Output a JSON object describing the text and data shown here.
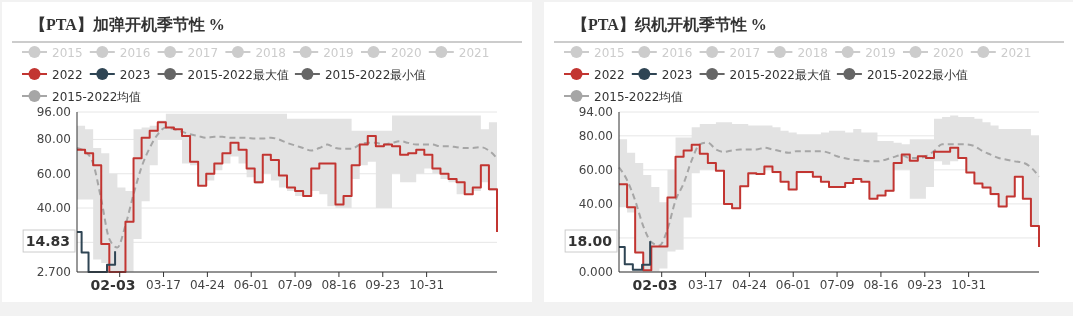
{
  "chart_data": [
    {
      "type": "step",
      "title": "【PTA】加弹开机季节性 %",
      "x": [
        "--01-01",
        "--01-08",
        "--01-15",
        "--01-22",
        "--01-29",
        "--02-05",
        "--02-12",
        "--02-19",
        "--02-26",
        "--03-05",
        "--03-12",
        "--03-19",
        "--03-26",
        "--04-02",
        "--04-09",
        "--04-16",
        "--04-23",
        "--04-30",
        "--05-07",
        "--05-14",
        "--05-21",
        "--05-28",
        "--06-04",
        "--06-11",
        "--06-18",
        "--06-25",
        "--07-02",
        "--07-09",
        "--07-16",
        "--07-23",
        "--07-30",
        "--08-06",
        "--08-13",
        "--08-20",
        "--08-27",
        "--09-03",
        "--09-10",
        "--09-17",
        "--09-24",
        "--10-01",
        "--10-08",
        "--10-15",
        "--10-22",
        "--10-29",
        "--11-05",
        "--11-12",
        "--11-19",
        "--11-26",
        "--12-03",
        "--12-10",
        "--12-17",
        "--12-24",
        "--12-31"
      ],
      "xlim": [
        "--01-01",
        "--12-31"
      ],
      "xticks": [
        {
          "value": "--02-07",
          "label": null
        },
        {
          "value": "--03-17",
          "label": "03-17"
        },
        {
          "value": "--04-24",
          "label": "04-24"
        },
        {
          "value": "--06-01",
          "label": "06-01"
        },
        {
          "value": "--07-09",
          "label": "07-09"
        },
        {
          "value": "--08-16",
          "label": "08-16"
        },
        {
          "value": "--09-23",
          "label": "09-23"
        },
        {
          "value": "--10-31",
          "label": "10-31"
        }
      ],
      "ylim": [
        2.7,
        96
      ],
      "yticks": [
        {
          "value": 2.7,
          "label": "2.700"
        },
        {
          "value": 20,
          "label": null
        },
        {
          "value": 40,
          "label": "40.00"
        },
        {
          "value": 60,
          "label": "60.00"
        },
        {
          "value": 80,
          "label": "80.00"
        },
        {
          "value": 96,
          "label": "96.00"
        }
      ],
      "grid": "y",
      "legend": "top",
      "annotations": [
        "02-03",
        "14.83"
      ],
      "series": [
        {
          "name": "2015",
          "color": "#cccccc",
          "values": [
            null,
            null,
            null,
            null,
            null,
            null,
            null,
            null,
            null,
            null,
            null,
            null,
            null,
            null,
            null,
            null,
            null,
            null,
            null,
            null,
            null,
            null,
            null,
            null,
            null,
            null,
            null,
            null,
            null,
            null,
            null,
            null,
            null,
            null,
            null,
            null,
            null,
            null,
            null,
            null,
            null,
            null,
            null,
            null,
            null,
            null,
            null,
            null,
            null,
            null,
            null,
            null,
            null
          ]
        },
        {
          "name": "2016",
          "color": "#cccccc",
          "values": [
            null,
            null,
            null,
            null,
            null,
            null,
            null,
            null,
            null,
            null,
            null,
            null,
            null,
            null,
            null,
            null,
            null,
            null,
            null,
            null,
            null,
            null,
            null,
            null,
            null,
            null,
            null,
            null,
            null,
            null,
            null,
            null,
            null,
            null,
            null,
            null,
            null,
            null,
            null,
            null,
            null,
            null,
            null,
            null,
            null,
            null,
            null,
            null,
            null,
            null,
            null,
            null,
            null
          ]
        },
        {
          "name": "2017",
          "color": "#cccccc",
          "values": [
            null,
            null,
            null,
            null,
            null,
            null,
            null,
            null,
            null,
            null,
            null,
            null,
            null,
            null,
            null,
            null,
            null,
            null,
            null,
            null,
            null,
            null,
            null,
            null,
            null,
            null,
            null,
            null,
            null,
            null,
            null,
            null,
            null,
            null,
            null,
            null,
            null,
            null,
            null,
            null,
            null,
            null,
            null,
            null,
            null,
            null,
            null,
            null,
            null,
            null,
            null,
            null,
            null
          ]
        },
        {
          "name": "2018",
          "color": "#cccccc",
          "values": [
            null,
            null,
            null,
            null,
            null,
            null,
            null,
            null,
            null,
            null,
            null,
            null,
            null,
            null,
            null,
            null,
            null,
            null,
            null,
            null,
            null,
            null,
            null,
            null,
            null,
            null,
            null,
            null,
            null,
            null,
            null,
            null,
            null,
            null,
            null,
            null,
            null,
            null,
            null,
            null,
            null,
            null,
            null,
            null,
            null,
            null,
            null,
            null,
            null,
            null,
            null,
            null,
            null
          ]
        },
        {
          "name": "2019",
          "color": "#cccccc",
          "values": [
            null,
            null,
            null,
            null,
            null,
            null,
            null,
            null,
            null,
            null,
            null,
            null,
            null,
            null,
            null,
            null,
            null,
            null,
            null,
            null,
            null,
            null,
            null,
            null,
            null,
            null,
            null,
            null,
            null,
            null,
            null,
            null,
            null,
            null,
            null,
            null,
            null,
            null,
            null,
            null,
            null,
            null,
            null,
            null,
            null,
            null,
            null,
            null,
            null,
            null,
            null,
            null,
            null
          ]
        },
        {
          "name": "2020",
          "color": "#cccccc",
          "values": [
            null,
            null,
            null,
            null,
            null,
            null,
            null,
            null,
            null,
            null,
            null,
            null,
            null,
            null,
            null,
            null,
            null,
            null,
            null,
            null,
            null,
            null,
            null,
            null,
            null,
            null,
            null,
            null,
            null,
            null,
            null,
            null,
            null,
            null,
            null,
            null,
            null,
            null,
            null,
            null,
            null,
            null,
            null,
            null,
            null,
            null,
            null,
            null,
            null,
            null,
            null,
            null,
            null
          ]
        },
        {
          "name": "2021",
          "color": "#cccccc",
          "values": [
            null,
            null,
            null,
            null,
            null,
            null,
            null,
            null,
            null,
            null,
            null,
            null,
            null,
            null,
            null,
            null,
            null,
            null,
            null,
            null,
            null,
            null,
            null,
            null,
            null,
            null,
            null,
            null,
            null,
            null,
            null,
            null,
            null,
            null,
            null,
            null,
            null,
            null,
            null,
            null,
            null,
            null,
            null,
            null,
            null,
            null,
            null,
            null,
            null,
            null,
            null,
            null,
            null
          ]
        },
        {
          "name": "2022",
          "color": "#c23531",
          "values": [
            74,
            72,
            65,
            19,
            2.7,
            2.7,
            32,
            69,
            81,
            85,
            90,
            87,
            86,
            82,
            67,
            53,
            60,
            66,
            72,
            78,
            74,
            63,
            55,
            71,
            68,
            59,
            52,
            50,
            47,
            63,
            66,
            66,
            42,
            47,
            65,
            77,
            82,
            76,
            77,
            76,
            71,
            72,
            74,
            71,
            63,
            60,
            57,
            55,
            48,
            52,
            65,
            51,
            26
          ]
        },
        {
          "name": "2023",
          "color": "#2f4554",
          "x": [
            "--01-01",
            "--01-05",
            "--01-11",
            "--01-27",
            "--02-03"
          ],
          "values": [
            26,
            14,
            2.7,
            7,
            14.83
          ]
        },
        {
          "name": "2015-2022最大值",
          "color": "#666666",
          "values": [
            null,
            null,
            null,
            null,
            null,
            null,
            null,
            null,
            null,
            null,
            null,
            null,
            null,
            null,
            null,
            null,
            null,
            null,
            null,
            null,
            null,
            null,
            null,
            null,
            null,
            null,
            null,
            null,
            null,
            null,
            null,
            null,
            null,
            null,
            null,
            null,
            null,
            null,
            null,
            null,
            null,
            null,
            null,
            null,
            null,
            null,
            null,
            null,
            null,
            null,
            null,
            null,
            null
          ]
        },
        {
          "name": "2015-2022最小值",
          "color": "#666666",
          "values": [
            null,
            null,
            null,
            null,
            null,
            null,
            null,
            null,
            null,
            null,
            null,
            null,
            null,
            null,
            null,
            null,
            null,
            null,
            null,
            null,
            null,
            null,
            null,
            null,
            null,
            null,
            null,
            null,
            null,
            null,
            null,
            null,
            null,
            null,
            null,
            null,
            null,
            null,
            null,
            null,
            null,
            null,
            null,
            null,
            null,
            null,
            null,
            null,
            null,
            null,
            null,
            null,
            null
          ]
        },
        {
          "name": "2015-2022均值",
          "type": "line",
          "line_style": "dashed",
          "color": "#a6a6a6",
          "values": [
            75,
            73,
            66,
            45,
            22,
            17,
            30,
            48,
            64,
            75,
            83,
            87,
            86,
            84.5,
            83,
            82,
            81,
            81.5,
            81.5,
            81,
            81,
            81,
            80.5,
            80.5,
            81,
            80,
            78,
            76.5,
            75,
            73.5,
            75,
            77,
            75,
            74.5,
            74.5,
            77,
            78,
            78,
            77,
            78,
            79,
            78,
            77,
            77,
            77,
            76,
            76,
            75.5,
            75,
            75,
            75.5,
            73.5,
            69
          ],
          "upper": [
            88,
            86,
            75,
            72,
            60,
            52,
            50,
            86,
            87,
            88,
            91,
            95,
            95,
            95,
            95,
            95,
            95,
            95,
            95,
            95,
            95,
            95,
            95,
            95,
            95,
            95,
            92,
            92,
            92,
            92,
            92,
            92,
            92,
            92,
            85,
            85,
            85,
            85,
            85,
            94,
            94,
            94,
            94,
            94,
            94,
            94,
            94,
            94,
            94,
            94,
            86,
            90,
            90
          ],
          "lower": [
            45,
            45,
            10,
            8,
            2.7,
            2.7,
            2.7,
            22,
            44,
            65,
            80,
            80,
            80,
            66,
            65,
            53,
            56,
            62,
            66,
            70,
            66,
            58,
            54,
            60,
            56,
            52,
            50,
            47,
            47,
            50,
            48,
            41,
            40,
            40,
            57,
            65,
            67,
            40,
            40,
            60,
            55,
            55,
            60,
            63,
            60,
            57,
            55,
            48,
            48,
            50,
            55,
            50,
            26
          ]
        }
      ]
    },
    {
      "type": "step",
      "title": "【PTA】织机开机季节性 %",
      "x": [
        "--01-01",
        "--01-08",
        "--01-15",
        "--01-22",
        "--01-29",
        "--02-05",
        "--02-12",
        "--02-19",
        "--02-26",
        "--03-05",
        "--03-12",
        "--03-19",
        "--03-26",
        "--04-02",
        "--04-09",
        "--04-16",
        "--04-23",
        "--04-30",
        "--05-07",
        "--05-14",
        "--05-21",
        "--05-28",
        "--06-04",
        "--06-11",
        "--06-18",
        "--06-25",
        "--07-02",
        "--07-09",
        "--07-16",
        "--07-23",
        "--07-30",
        "--08-06",
        "--08-13",
        "--08-20",
        "--08-27",
        "--09-03",
        "--09-10",
        "--09-17",
        "--09-24",
        "--10-01",
        "--10-08",
        "--10-15",
        "--10-22",
        "--10-29",
        "--11-05",
        "--11-12",
        "--11-19",
        "--11-26",
        "--12-03",
        "--12-10",
        "--12-17",
        "--12-24",
        "--12-31"
      ],
      "xlim": [
        "--01-01",
        "--12-31"
      ],
      "xticks": [
        {
          "value": "--02-07",
          "label": null
        },
        {
          "value": "--03-17",
          "label": "03-17"
        },
        {
          "value": "--04-24",
          "label": "04-24"
        },
        {
          "value": "--06-01",
          "label": "06-01"
        },
        {
          "value": "--07-09",
          "label": "07-09"
        },
        {
          "value": "--08-16",
          "label": "08-16"
        },
        {
          "value": "--09-23",
          "label": "09-23"
        },
        {
          "value": "--10-31",
          "label": "10-31"
        }
      ],
      "ylim": [
        0,
        94
      ],
      "yticks": [
        {
          "value": 0,
          "label": "0.000"
        },
        {
          "value": 20,
          "label": null
        },
        {
          "value": 40,
          "label": "40.00"
        },
        {
          "value": 60,
          "label": "60.00"
        },
        {
          "value": 80,
          "label": "80.00"
        },
        {
          "value": 94,
          "label": "94.00"
        }
      ],
      "grid": "y",
      "legend": "top",
      "annotations": [
        "02-03",
        "18.00"
      ],
      "series": [
        {
          "name": "2015",
          "color": "#cccccc",
          "values": [
            null,
            null,
            null,
            null,
            null,
            null,
            null,
            null,
            null,
            null,
            null,
            null,
            null,
            null,
            null,
            null,
            null,
            null,
            null,
            null,
            null,
            null,
            null,
            null,
            null,
            null,
            null,
            null,
            null,
            null,
            null,
            null,
            null,
            null,
            null,
            null,
            null,
            null,
            null,
            null,
            null,
            null,
            null,
            null,
            null,
            null,
            null,
            null,
            null,
            null,
            null,
            null,
            null
          ]
        },
        {
          "name": "2016",
          "color": "#cccccc",
          "values": [
            null,
            null,
            null,
            null,
            null,
            null,
            null,
            null,
            null,
            null,
            null,
            null,
            null,
            null,
            null,
            null,
            null,
            null,
            null,
            null,
            null,
            null,
            null,
            null,
            null,
            null,
            null,
            null,
            null,
            null,
            null,
            null,
            null,
            null,
            null,
            null,
            null,
            null,
            null,
            null,
            null,
            null,
            null,
            null,
            null,
            null,
            null,
            null,
            null,
            null,
            null,
            null,
            null
          ]
        },
        {
          "name": "2017",
          "color": "#cccccc",
          "values": [
            null,
            null,
            null,
            null,
            null,
            null,
            null,
            null,
            null,
            null,
            null,
            null,
            null,
            null,
            null,
            null,
            null,
            null,
            null,
            null,
            null,
            null,
            null,
            null,
            null,
            null,
            null,
            null,
            null,
            null,
            null,
            null,
            null,
            null,
            null,
            null,
            null,
            null,
            null,
            null,
            null,
            null,
            null,
            null,
            null,
            null,
            null,
            null,
            null,
            null,
            null,
            null,
            null
          ]
        },
        {
          "name": "2018",
          "color": "#cccccc",
          "values": [
            null,
            null,
            null,
            null,
            null,
            null,
            null,
            null,
            null,
            null,
            null,
            null,
            null,
            null,
            null,
            null,
            null,
            null,
            null,
            null,
            null,
            null,
            null,
            null,
            null,
            null,
            null,
            null,
            null,
            null,
            null,
            null,
            null,
            null,
            null,
            null,
            null,
            null,
            null,
            null,
            null,
            null,
            null,
            null,
            null,
            null,
            null,
            null,
            null,
            null,
            null,
            null,
            null
          ]
        },
        {
          "name": "2019",
          "color": "#cccccc",
          "values": [
            null,
            null,
            null,
            null,
            null,
            null,
            null,
            null,
            null,
            null,
            null,
            null,
            null,
            null,
            null,
            null,
            null,
            null,
            null,
            null,
            null,
            null,
            null,
            null,
            null,
            null,
            null,
            null,
            null,
            null,
            null,
            null,
            null,
            null,
            null,
            null,
            null,
            null,
            null,
            null,
            null,
            null,
            null,
            null,
            null,
            null,
            null,
            null,
            null,
            null,
            null,
            null,
            null
          ]
        },
        {
          "name": "2020",
          "color": "#cccccc",
          "values": [
            null,
            null,
            null,
            null,
            null,
            null,
            null,
            null,
            null,
            null,
            null,
            null,
            null,
            null,
            null,
            null,
            null,
            null,
            null,
            null,
            null,
            null,
            null,
            null,
            null,
            null,
            null,
            null,
            null,
            null,
            null,
            null,
            null,
            null,
            null,
            null,
            null,
            null,
            null,
            null,
            null,
            null,
            null,
            null,
            null,
            null,
            null,
            null,
            null,
            null,
            null,
            null,
            null
          ]
        },
        {
          "name": "2021",
          "color": "#cccccc",
          "values": [
            null,
            null,
            null,
            null,
            null,
            null,
            null,
            null,
            null,
            null,
            null,
            null,
            null,
            null,
            null,
            null,
            null,
            null,
            null,
            null,
            null,
            null,
            null,
            null,
            null,
            null,
            null,
            null,
            null,
            null,
            null,
            null,
            null,
            null,
            null,
            null,
            null,
            null,
            null,
            null,
            null,
            null,
            null,
            null,
            null,
            null,
            null,
            null,
            null,
            null,
            null,
            null,
            null
          ]
        },
        {
          "name": "2022",
          "color": "#c23531",
          "values": [
            51.5,
            38,
            11.5,
            1,
            15,
            15,
            43.7,
            67.7,
            71.4,
            74.8,
            69.5,
            64,
            59.5,
            40,
            37.4,
            50.4,
            58,
            57.6,
            62,
            58.8,
            53,
            48.5,
            58.8,
            58.8,
            56,
            53,
            50,
            50,
            52.3,
            54.6,
            53,
            43,
            45,
            47.7,
            64,
            69,
            65.3,
            68,
            67,
            70.6,
            70.6,
            73,
            67,
            58.4,
            52,
            49.6,
            45.8,
            38.5,
            44.3,
            56,
            43,
            27,
            14.7
          ]
        },
        {
          "name": "2023",
          "color": "#2f4554",
          "x": [
            "--01-01",
            "--01-06",
            "--01-13",
            "--01-21",
            "--01-28"
          ],
          "values": [
            14.7,
            4.6,
            1.3,
            4.2,
            18
          ]
        },
        {
          "name": "2015-2022最大值",
          "color": "#666666",
          "values": [
            null,
            null,
            null,
            null,
            null,
            null,
            null,
            null,
            null,
            null,
            null,
            null,
            null,
            null,
            null,
            null,
            null,
            null,
            null,
            null,
            null,
            null,
            null,
            null,
            null,
            null,
            null,
            null,
            null,
            null,
            null,
            null,
            null,
            null,
            null,
            null,
            null,
            null,
            null,
            null,
            null,
            null,
            null,
            null,
            null,
            null,
            null,
            null,
            null,
            null,
            null,
            null,
            null
          ]
        },
        {
          "name": "2015-2022最小值",
          "color": "#666666",
          "values": [
            null,
            null,
            null,
            null,
            null,
            null,
            null,
            null,
            null,
            null,
            null,
            null,
            null,
            null,
            null,
            null,
            null,
            null,
            null,
            null,
            null,
            null,
            null,
            null,
            null,
            null,
            null,
            null,
            null,
            null,
            null,
            null,
            null,
            null,
            null,
            null,
            null,
            null,
            null,
            null,
            null,
            null,
            null,
            null,
            null,
            null,
            null,
            null,
            null,
            null,
            null,
            null,
            null
          ]
        },
        {
          "name": "2015-2022均值",
          "type": "line",
          "line_style": "dashed",
          "color": "#a6a6a6",
          "values": [
            61.5,
            54,
            42,
            27,
            17.6,
            15.6,
            25,
            42,
            52,
            65.6,
            75,
            76,
            72,
            70.6,
            71.4,
            72,
            72,
            72,
            73,
            72,
            71,
            70,
            71,
            71,
            71,
            71,
            70,
            68,
            66.8,
            66,
            65.5,
            65,
            65,
            66,
            67.5,
            68.7,
            67,
            67,
            68,
            71,
            75,
            75,
            75,
            75,
            74,
            71,
            69,
            67,
            66,
            65,
            64.3,
            61.5,
            56
          ],
          "upper": [
            78,
            70,
            64,
            57,
            50,
            41,
            60,
            79,
            79,
            85,
            87,
            87,
            88,
            88,
            87,
            87,
            86,
            86,
            86,
            85,
            83,
            82,
            81,
            81,
            81,
            82,
            83,
            83,
            82,
            84,
            82,
            82,
            77,
            77,
            76,
            75,
            78,
            78,
            78,
            90,
            91,
            92,
            91,
            91,
            90,
            88,
            86,
            84,
            84,
            84,
            84,
            80,
            80
          ],
          "lower": [
            38,
            35,
            11,
            1,
            0,
            2,
            12,
            13,
            32,
            58,
            60,
            60,
            59,
            40,
            37,
            50,
            57,
            57,
            60,
            58,
            53,
            48,
            58,
            58,
            56,
            53,
            50,
            50,
            52,
            54,
            53,
            43,
            45,
            47,
            60,
            60,
            43,
            43,
            50,
            65,
            63,
            65,
            67,
            58,
            52,
            49,
            45,
            38,
            44,
            56,
            43,
            27,
            14.7
          ]
        }
      ]
    }
  ]
}
